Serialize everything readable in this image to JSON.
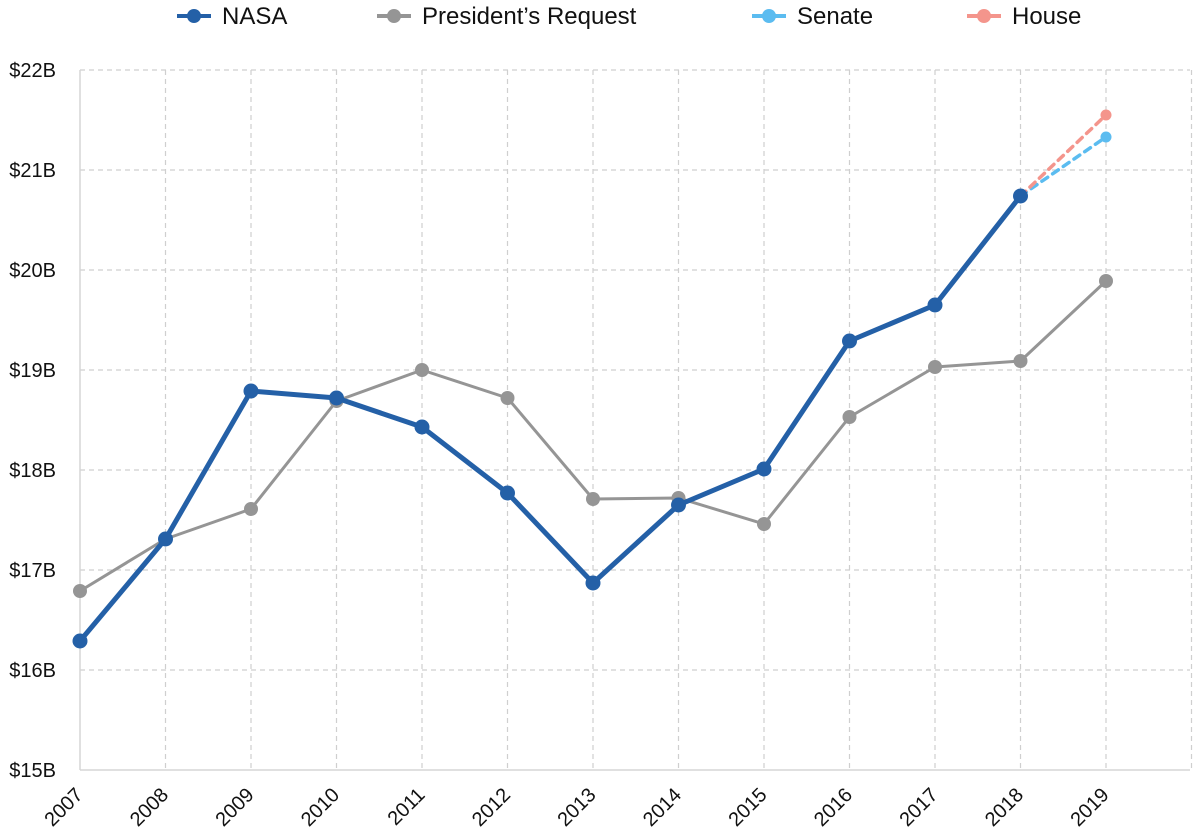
{
  "chart_data": {
    "type": "line",
    "title": "",
    "xlabel": "",
    "ylabel": "",
    "categories": [
      "2007",
      "2008",
      "2009",
      "2010",
      "2011",
      "2012",
      "2013",
      "2014",
      "2015",
      "2016",
      "2017",
      "2018",
      "2019"
    ],
    "ylim": [
      15,
      22
    ],
    "y_ticks": [
      "$15B",
      "$16B",
      "$17B",
      "$18B",
      "$19B",
      "$20B",
      "$21B",
      "$22B"
    ],
    "grid": true,
    "legend_position": "top-center",
    "series": [
      {
        "name": "NASA",
        "color": "#2460a7",
        "style": "solid",
        "values": [
          16.29,
          17.31,
          18.79,
          18.72,
          18.43,
          17.77,
          16.87,
          17.65,
          18.01,
          19.29,
          19.65,
          20.74,
          null
        ]
      },
      {
        "name": "President’s Request",
        "color": "#959595",
        "style": "solid",
        "values": [
          16.79,
          17.31,
          17.61,
          18.69,
          19.0,
          18.72,
          17.71,
          17.72,
          17.46,
          18.53,
          19.03,
          19.09,
          19.89
        ]
      },
      {
        "name": "Senate",
        "color": "#5bbcf0",
        "style": "dashed",
        "values": [
          null,
          null,
          null,
          null,
          null,
          null,
          null,
          null,
          null,
          null,
          null,
          20.74,
          21.33
        ]
      },
      {
        "name": "House",
        "color": "#f4958c",
        "style": "dashed",
        "values": [
          null,
          null,
          null,
          null,
          null,
          null,
          null,
          null,
          null,
          null,
          null,
          20.74,
          21.55
        ]
      }
    ]
  }
}
